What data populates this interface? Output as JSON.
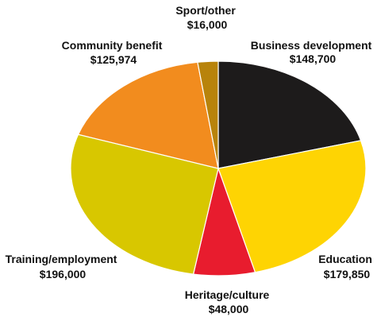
{
  "chart_data": {
    "type": "pie",
    "title": "",
    "slices": [
      {
        "name": "Business development",
        "value": 148700,
        "label": "$148,700",
        "color": "#1d1b1b"
      },
      {
        "name": "Education",
        "value": 179850,
        "label": "$179,850",
        "color": "#fed403"
      },
      {
        "name": "Heritage/culture",
        "value": 48000,
        "label": "$48,000",
        "color": "#e81c2e"
      },
      {
        "name": "Training/employment",
        "value": 196000,
        "label": "$196,000",
        "color": "#d8c700"
      },
      {
        "name": "Community benefit",
        "value": 125974,
        "label": "$125,974",
        "color": "#f28c1e"
      },
      {
        "name": "Sport/other",
        "value": 16000,
        "label": "$16,000",
        "color": "#b8830b"
      }
    ]
  }
}
